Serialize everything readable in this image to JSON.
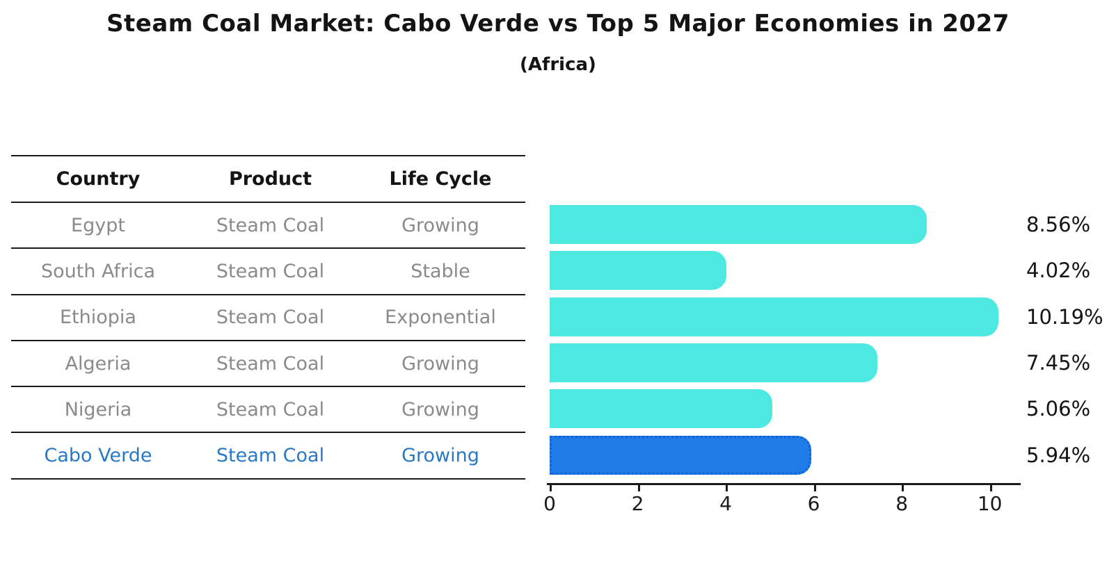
{
  "title": "Steam Coal Market: Cabo Verde vs Top 5 Major Economies in 2027",
  "subtitle": "(Africa)",
  "table": {
    "headers": [
      "Country",
      "Product",
      "Life Cycle"
    ],
    "rows": [
      {
        "country": "Egypt",
        "product": "Steam Coal",
        "life_cycle": "Growing"
      },
      {
        "country": "South Africa",
        "product": "Steam Coal",
        "life_cycle": "Stable"
      },
      {
        "country": "Ethiopia",
        "product": "Steam Coal",
        "life_cycle": "Exponential"
      },
      {
        "country": "Algeria",
        "product": "Steam Coal",
        "life_cycle": "Growing"
      },
      {
        "country": "Nigeria",
        "product": "Steam Coal",
        "life_cycle": "Growing"
      },
      {
        "country": "Cabo Verde",
        "product": "Steam Coal",
        "life_cycle": "Growing"
      }
    ],
    "highlight_row": "Cabo Verde"
  },
  "chart_data": {
    "type": "bar",
    "orientation": "horizontal",
    "title": "Steam Coal Market: Cabo Verde vs Top 5 Major Economies in 2027 (Africa)",
    "categories": [
      "Egypt",
      "South Africa",
      "Ethiopia",
      "Algeria",
      "Nigeria",
      "Cabo Verde"
    ],
    "values": [
      8.56,
      4.02,
      10.19,
      7.45,
      5.06,
      5.94
    ],
    "value_labels": [
      "8.56%",
      "4.02%",
      "10.19%",
      "7.45%",
      "5.06%",
      "5.94%"
    ],
    "value_suffix": "%",
    "xlabel": "",
    "ylabel": "",
    "xlim": [
      0,
      10.7
    ],
    "xticks": [
      0,
      2,
      4,
      6,
      8,
      10
    ],
    "grid": false,
    "legend": false,
    "bar_color": "#4de9e0",
    "highlight_color": "#1e7be8",
    "highlight_index": 5
  }
}
